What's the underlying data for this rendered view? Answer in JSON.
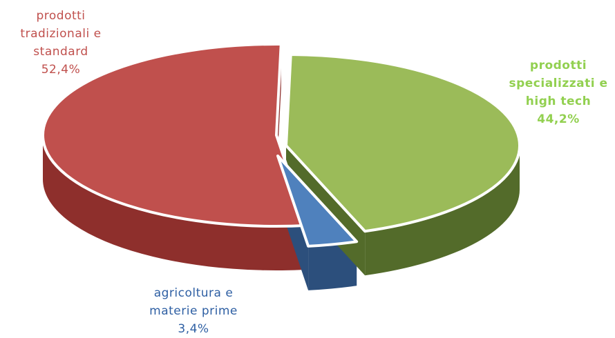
{
  "chart_data": {
    "type": "pie",
    "style": "3d-exploded",
    "slices": [
      {
        "label_lines": [
          "prodotti",
          "tradizionali e",
          "standard"
        ],
        "value_label": "52,4%",
        "value": 52.4,
        "color": "#c0504d",
        "side_color": "#8e2f2c"
      },
      {
        "label_lines": [
          "prodotti",
          "specializzati  e",
          "high tech"
        ],
        "value_label": "44,2%",
        "value": 44.2,
        "color": "#9bbb59",
        "side_color": "#536b2a"
      },
      {
        "label_lines": [
          "agricoltura e",
          "materie prime"
        ],
        "value_label": "3,4%",
        "value": 3.4,
        "color": "#4f81bd",
        "side_color": "#2c4f7c"
      }
    ]
  }
}
